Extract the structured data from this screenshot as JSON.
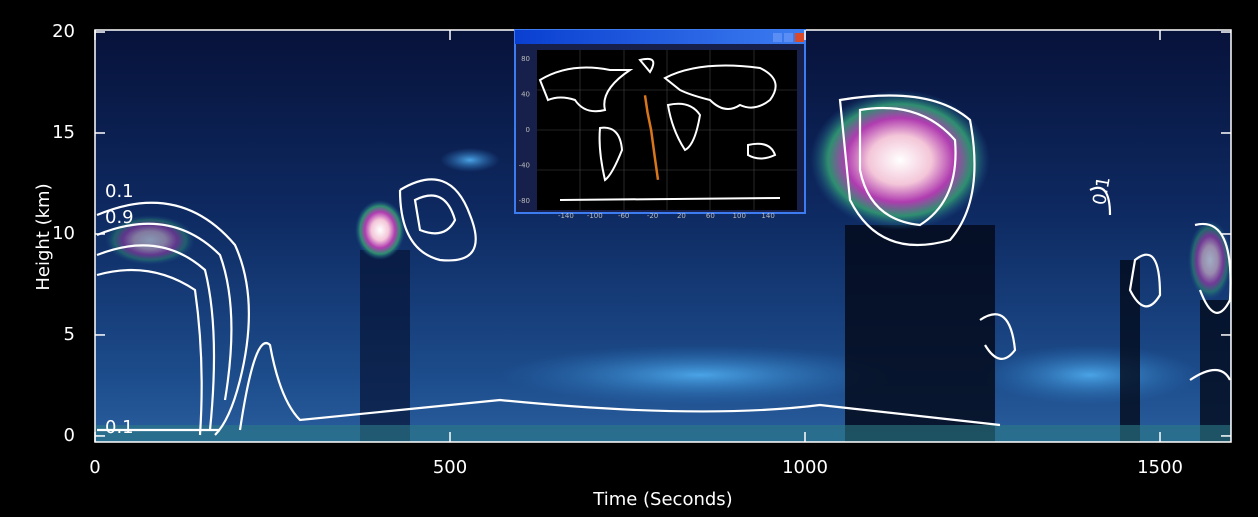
{
  "chart_data": [
    {
      "type": "heatmap",
      "x_label": "Time (Seconds)",
      "y_label": "Height (km)",
      "xlim": [
        0,
        1600
      ],
      "xticks": [
        0,
        500,
        1000,
        1500
      ],
      "ylim": [
        -0.3,
        20.1
      ],
      "yticks": [
        0,
        5,
        10,
        15,
        20
      ],
      "annotations": [
        "0.1",
        "0.9",
        "0.1",
        "0.1"
      ]
    },
    {
      "type": "map",
      "xlim": [
        -180,
        180
      ],
      "ylim": [
        -90,
        90
      ],
      "xticks": [
        -140,
        -100,
        -60,
        -20,
        20,
        60,
        100,
        140
      ],
      "yticks": [
        80,
        40,
        0,
        -40,
        -80
      ],
      "series": [
        {
          "color": "#d9761c",
          "x": [
            -30.5,
            -27,
            -22,
            -17,
            -12.5
          ],
          "y": [
            39,
            20,
            0,
            -30,
            -56
          ]
        }
      ]
    }
  ]
}
